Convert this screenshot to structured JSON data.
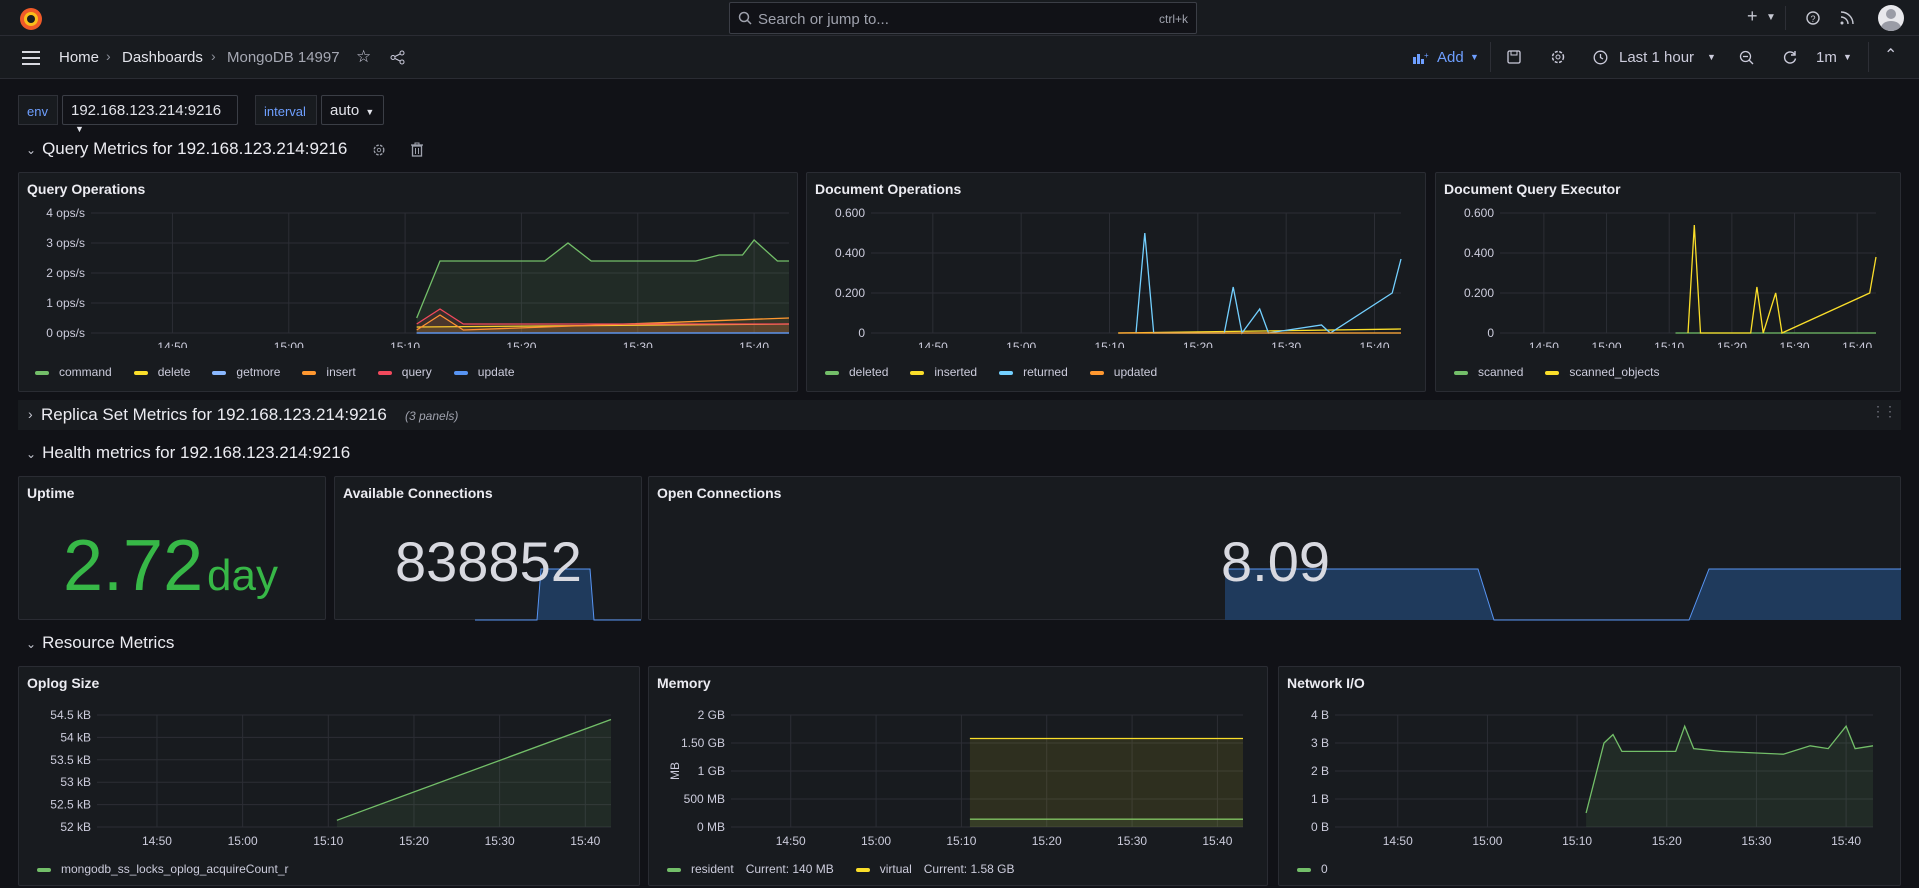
{
  "topbar": {
    "search_placeholder": "Search or jump to...",
    "search_shortcut": "ctrl+k",
    "plus_label": "+"
  },
  "nav": {
    "breadcrumb": [
      "Home",
      "Dashboards",
      "MongoDB 14997"
    ],
    "add_label": "Add",
    "time_range": "Last 1 hour",
    "refresh_interval": "1m"
  },
  "variables": [
    {
      "label": "env",
      "value": "192.168.123.214:9216"
    },
    {
      "label": "interval",
      "value": "auto"
    }
  ],
  "rows": {
    "query": "Query Metrics for 192.168.123.214:9216",
    "replica": "Replica Set Metrics for 192.168.123.214:9216",
    "replica_count": "(3 panels)",
    "health": "Health metrics for 192.168.123.214:9216",
    "resource": "Resource Metrics"
  },
  "panels": {
    "query_ops": {
      "title": "Query Operations"
    },
    "doc_ops": {
      "title": "Document Operations"
    },
    "doc_exec": {
      "title": "Document Query Executor"
    },
    "uptime": {
      "title": "Uptime",
      "value": "2.72",
      "unit": "day"
    },
    "avail_conn": {
      "title": "Available Connections",
      "value": "838852"
    },
    "open_conn": {
      "title": "Open Connections",
      "value": "8.09"
    },
    "oplog": {
      "title": "Oplog Size"
    },
    "memory": {
      "title": "Memory"
    },
    "network": {
      "title": "Network I/O"
    }
  },
  "colors": {
    "green": "#73bf69",
    "yellow": "#fade2a",
    "blue": "#5794f2",
    "cyan": "#8ab8ff",
    "orange": "#ff9830",
    "red": "#f2495c",
    "sky": "#73d0ff",
    "uptime_green": "#37b847"
  },
  "chart_data": [
    {
      "type": "line",
      "title": "Query Operations",
      "x": [
        "14:50",
        "15:00",
        "15:10",
        "15:20",
        "15:30",
        "15:40"
      ],
      "yticks": [
        "4 ops/s",
        "3 ops/s",
        "2 ops/s",
        "1 ops/s",
        "0 ops/s"
      ],
      "ylim": [
        0,
        4
      ],
      "series": [
        {
          "name": "command",
          "color": "#73bf69",
          "values": [
            [
              15.11,
              0.5
            ],
            [
              15.13,
              2.4
            ],
            [
              15.2,
              2.4
            ],
            [
              15.22,
              2.4
            ],
            [
              15.24,
              3.0
            ],
            [
              15.26,
              2.4
            ],
            [
              15.35,
              2.4
            ],
            [
              15.37,
              2.6
            ],
            [
              15.39,
              2.6
            ],
            [
              15.4,
              3.1
            ],
            [
              15.42,
              2.4
            ],
            [
              15.43,
              2.4
            ]
          ]
        },
        {
          "name": "delete",
          "color": "#fade2a",
          "values": [
            [
              15.11,
              0.2
            ],
            [
              15.43,
              0.3
            ]
          ]
        },
        {
          "name": "getmore",
          "color": "#8ab8ff",
          "values": [
            [
              15.11,
              0
            ],
            [
              15.43,
              0
            ]
          ]
        },
        {
          "name": "insert",
          "color": "#ff9830",
          "values": [
            [
              15.11,
              0.1
            ],
            [
              15.13,
              0.6
            ],
            [
              15.15,
              0.1
            ],
            [
              15.43,
              0.5
            ]
          ]
        },
        {
          "name": "query",
          "color": "#f2495c",
          "values": [
            [
              15.11,
              0.3
            ],
            [
              15.13,
              0.8
            ],
            [
              15.15,
              0.3
            ],
            [
              15.43,
              0.3
            ]
          ]
        },
        {
          "name": "update",
          "color": "#5794f2",
          "values": [
            [
              15.11,
              0
            ],
            [
              15.43,
              0
            ]
          ]
        }
      ]
    },
    {
      "type": "line",
      "title": "Document Operations",
      "x": [
        "14:50",
        "15:00",
        "15:10",
        "15:20",
        "15:30",
        "15:40"
      ],
      "yticks": [
        "0.600",
        "0.400",
        "0.200",
        "0"
      ],
      "ylim": [
        0,
        0.6
      ],
      "series": [
        {
          "name": "deleted",
          "color": "#73bf69",
          "values": [
            [
              15.11,
              0
            ],
            [
              15.43,
              0
            ]
          ]
        },
        {
          "name": "inserted",
          "color": "#fade2a",
          "values": [
            [
              15.11,
              0
            ],
            [
              15.43,
              0.02
            ]
          ]
        },
        {
          "name": "returned",
          "color": "#73d0ff",
          "values": [
            [
              15.13,
              0
            ],
            [
              15.14,
              0.5
            ],
            [
              15.15,
              0
            ],
            [
              15.23,
              0
            ],
            [
              15.24,
              0.23
            ],
            [
              15.25,
              0
            ],
            [
              15.27,
              0.12
            ],
            [
              15.28,
              0
            ],
            [
              15.34,
              0.04
            ],
            [
              15.35,
              0
            ],
            [
              15.42,
              0.2
            ],
            [
              15.43,
              0.37
            ]
          ]
        },
        {
          "name": "updated",
          "color": "#ff9830",
          "values": [
            [
              15.11,
              0
            ],
            [
              15.43,
              0
            ]
          ]
        }
      ]
    },
    {
      "type": "line",
      "title": "Document Query Executor",
      "x": [
        "14:50",
        "15:00",
        "15:10",
        "15:20",
        "15:30",
        "15:40"
      ],
      "yticks": [
        "0.600",
        "0.400",
        "0.200",
        "0"
      ],
      "ylim": [
        0,
        0.6
      ],
      "series": [
        {
          "name": "scanned",
          "color": "#73bf69",
          "values": [
            [
              15.11,
              0
            ],
            [
              15.43,
              0
            ]
          ]
        },
        {
          "name": "scanned_objects",
          "color": "#fade2a",
          "values": [
            [
              15.13,
              0
            ],
            [
              15.14,
              0.54
            ],
            [
              15.15,
              0
            ],
            [
              15.23,
              0
            ],
            [
              15.24,
              0.23
            ],
            [
              15.25,
              0
            ],
            [
              15.27,
              0.2
            ],
            [
              15.28,
              0
            ],
            [
              15.42,
              0.2
            ],
            [
              15.43,
              0.38
            ]
          ]
        }
      ]
    },
    {
      "type": "area",
      "title": "Oplog Size",
      "x": [
        "14:50",
        "15:00",
        "15:10",
        "15:20",
        "15:30",
        "15:40"
      ],
      "yticks": [
        "54.5 kB",
        "54 kB",
        "53.5 kB",
        "53 kB",
        "52.5 kB",
        "52 kB"
      ],
      "ylim": [
        52,
        54.5
      ],
      "series": [
        {
          "name": "mongodb_ss_locks_oplog_acquireCount_r",
          "color": "#73bf69",
          "values": [
            [
              15.11,
              52.15
            ],
            [
              15.43,
              54.4
            ]
          ]
        }
      ]
    },
    {
      "type": "area",
      "title": "Memory",
      "ylabel": "MB",
      "x": [
        "14:50",
        "15:00",
        "15:10",
        "15:20",
        "15:30",
        "15:40"
      ],
      "yticks": [
        "2 GB",
        "1.50 GB",
        "1 GB",
        "500 MB",
        "0 MB"
      ],
      "ylim": [
        0,
        2
      ],
      "series": [
        {
          "name": "resident",
          "legend_extra": "Current: 140 MB",
          "color": "#73bf69",
          "values": [
            [
              15.11,
              0.14
            ],
            [
              15.43,
              0.14
            ]
          ]
        },
        {
          "name": "virtual",
          "legend_extra": "Current: 1.58 GB",
          "color": "#fade2a",
          "values": [
            [
              15.11,
              1.58
            ],
            [
              15.43,
              1.58
            ]
          ]
        }
      ]
    },
    {
      "type": "area",
      "title": "Network I/O",
      "x": [
        "14:50",
        "15:00",
        "15:10",
        "15:20",
        "15:30",
        "15:40"
      ],
      "yticks": [
        "4 B",
        "3 B",
        "2 B",
        "1 B",
        "0 B"
      ],
      "ylim": [
        0,
        4
      ],
      "series": [
        {
          "name": "0",
          "color": "#73bf69",
          "values": [
            [
              15.11,
              0.5
            ],
            [
              15.13,
              3.0
            ],
            [
              15.14,
              3.3
            ],
            [
              15.15,
              2.7
            ],
            [
              15.21,
              2.7
            ],
            [
              15.22,
              3.6
            ],
            [
              15.23,
              2.8
            ],
            [
              15.26,
              2.7
            ],
            [
              15.33,
              2.6
            ],
            [
              15.36,
              2.9
            ],
            [
              15.38,
              2.8
            ],
            [
              15.4,
              3.6
            ],
            [
              15.41,
              2.8
            ],
            [
              15.43,
              2.9
            ]
          ]
        }
      ]
    }
  ]
}
